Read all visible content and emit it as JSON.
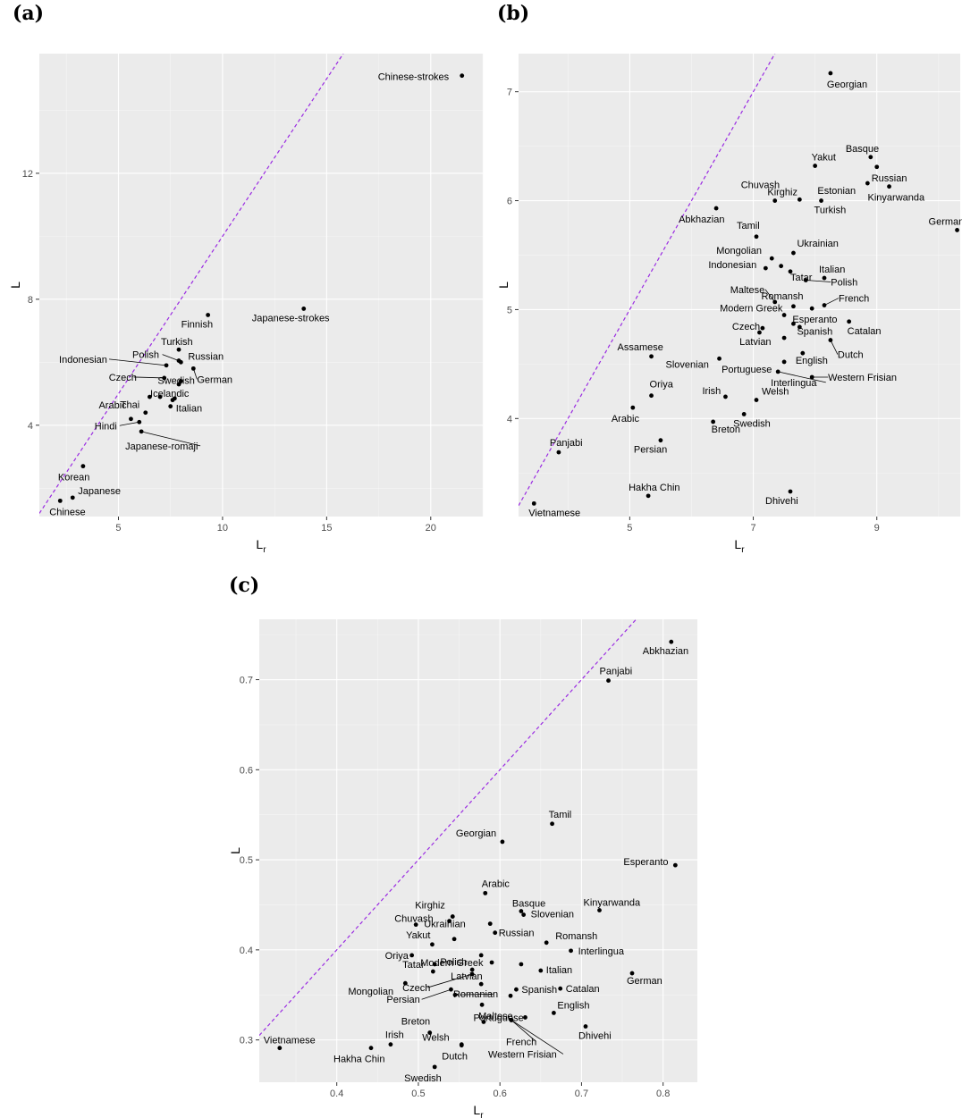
{
  "chart_data": [
    {
      "panel": "(a)",
      "type": "scatter",
      "xlabel": "L",
      "xlabel_sub": "r",
      "ylabel": "L",
      "xlim": [
        1.2,
        22.5
      ],
      "ylim": [
        1.1,
        15.8
      ],
      "xticks": [
        5,
        10,
        15,
        20
      ],
      "yticks": [
        4,
        8,
        12
      ],
      "reference_line": {
        "style": "dashed",
        "color": "#9a2be2",
        "slope": 1,
        "intercept": 0
      },
      "points": [
        {
          "label": "Chinese-strokes",
          "x": 21.5,
          "y": 15.1
        },
        {
          "label": "Japanese-strokes",
          "x": 13.9,
          "y": 7.7
        },
        {
          "label": "Finnish",
          "x": 9.3,
          "y": 7.5
        },
        {
          "label": "Turkish",
          "x": 7.9,
          "y": 6.4
        },
        {
          "label": "Russian",
          "x": 8.0,
          "y": 6.0
        },
        {
          "label": "Polish",
          "x": 7.9,
          "y": 6.05
        },
        {
          "label": "Indonesian",
          "x": 7.3,
          "y": 5.9
        },
        {
          "label": "Swedish",
          "x": 8.0,
          "y": 5.4
        },
        {
          "label": "German",
          "x": 8.6,
          "y": 5.8
        },
        {
          "label": "Czech",
          "x": 7.2,
          "y": 5.5
        },
        {
          "label": "Icelandic",
          "x": 7.9,
          "y": 5.3
        },
        {
          "label": "",
          "x": 6.5,
          "y": 4.9
        },
        {
          "label": "",
          "x": 7.0,
          "y": 4.9
        },
        {
          "label": "",
          "x": 7.6,
          "y": 4.8
        },
        {
          "label": "",
          "x": 7.7,
          "y": 4.85
        },
        {
          "label": "Thai",
          "x": 6.3,
          "y": 4.4
        },
        {
          "label": "Italian",
          "x": 7.5,
          "y": 4.6
        },
        {
          "label": "Arabic",
          "x": 5.6,
          "y": 4.2
        },
        {
          "label": "Hindi",
          "x": 6.0,
          "y": 4.1
        },
        {
          "label": "Japanese-romaji",
          "x": 6.1,
          "y": 3.8
        },
        {
          "label": "Korean",
          "x": 3.3,
          "y": 2.7
        },
        {
          "label": "Japanese",
          "x": 2.8,
          "y": 1.7
        },
        {
          "label": "Chinese",
          "x": 2.2,
          "y": 1.6
        }
      ]
    },
    {
      "panel": "(b)",
      "type": "scatter",
      "xlabel": "L",
      "xlabel_sub": "r",
      "ylabel": "L",
      "xlim": [
        3.2,
        10.35
      ],
      "ylim": [
        3.1,
        7.35
      ],
      "xticks": [
        5,
        7,
        9
      ],
      "yticks": [
        4,
        5,
        6,
        7
      ],
      "reference_line": {
        "style": "dashed",
        "color": "#9a2be2",
        "slope": 1,
        "intercept": 0
      },
      "points": [
        {
          "label": "Georgian",
          "x": 8.25,
          "y": 7.17
        },
        {
          "label": "Basque",
          "x": 8.9,
          "y": 6.4
        },
        {
          "label": "Yakut",
          "x": 8.0,
          "y": 6.32
        },
        {
          "label": "Russian",
          "x": 9.0,
          "y": 6.31
        },
        {
          "label": "Estonian",
          "x": 8.85,
          "y": 6.16
        },
        {
          "label": "Kinyarwanda",
          "x": 9.2,
          "y": 6.13
        },
        {
          "label": "Kirghiz",
          "x": 7.75,
          "y": 6.01
        },
        {
          "label": "Chuvash",
          "x": 7.35,
          "y": 6.0
        },
        {
          "label": "Turkish",
          "x": 8.1,
          "y": 6.0
        },
        {
          "label": "Abkhazian",
          "x": 6.4,
          "y": 5.93
        },
        {
          "label": "German",
          "x": 10.3,
          "y": 5.73
        },
        {
          "label": "Tamil",
          "x": 7.05,
          "y": 5.67
        },
        {
          "label": "Ukrainian",
          "x": 7.65,
          "y": 5.52
        },
        {
          "label": "Mongolian",
          "x": 7.3,
          "y": 5.47
        },
        {
          "label": "",
          "x": 7.45,
          "y": 5.4
        },
        {
          "label": "Indonesian",
          "x": 7.2,
          "y": 5.38
        },
        {
          "label": "Tatar",
          "x": 7.6,
          "y": 5.35
        },
        {
          "label": "Italian",
          "x": 8.15,
          "y": 5.29
        },
        {
          "label": "Polish",
          "x": 7.85,
          "y": 5.27
        },
        {
          "label": "Maltese",
          "x": 7.35,
          "y": 5.07
        },
        {
          "label": "Romansh",
          "x": 7.65,
          "y": 5.03
        },
        {
          "label": "French",
          "x": 8.15,
          "y": 5.04
        },
        {
          "label": "",
          "x": 7.95,
          "y": 5.01
        },
        {
          "label": "Modern Greek",
          "x": 7.5,
          "y": 4.95
        },
        {
          "label": "Spanish",
          "x": 7.65,
          "y": 4.87
        },
        {
          "label": "Catalan",
          "x": 8.55,
          "y": 4.89
        },
        {
          "label": "Czech",
          "x": 7.15,
          "y": 4.83
        },
        {
          "label": "",
          "x": 7.1,
          "y": 4.79
        },
        {
          "label": "Esperanto",
          "x": 7.75,
          "y": 4.84
        },
        {
          "label": "Dutch",
          "x": 8.25,
          "y": 4.72
        },
        {
          "label": "Latvian",
          "x": 7.5,
          "y": 4.74
        },
        {
          "label": "English",
          "x": 7.8,
          "y": 4.6
        },
        {
          "label": "Assamese",
          "x": 5.35,
          "y": 4.57
        },
        {
          "label": "Slovenian",
          "x": 6.45,
          "y": 4.55
        },
        {
          "label": "Portuguese",
          "x": 7.5,
          "y": 4.52
        },
        {
          "label": "Interlingua",
          "x": 7.4,
          "y": 4.43
        },
        {
          "label": "Western Frisian",
          "x": 7.95,
          "y": 4.38
        },
        {
          "label": "Oriya",
          "x": 5.35,
          "y": 4.21
        },
        {
          "label": "Irish",
          "x": 6.55,
          "y": 4.2
        },
        {
          "label": "Welsh",
          "x": 7.05,
          "y": 4.17
        },
        {
          "label": "Arabic",
          "x": 5.05,
          "y": 4.1
        },
        {
          "label": "Swedish",
          "x": 6.85,
          "y": 4.04
        },
        {
          "label": "Breton",
          "x": 6.35,
          "y": 3.97
        },
        {
          "label": "Persian",
          "x": 5.5,
          "y": 3.8
        },
        {
          "label": "Panjabi",
          "x": 3.85,
          "y": 3.69
        },
        {
          "label": "Hakha Chin",
          "x": 5.3,
          "y": 3.29
        },
        {
          "label": "Dhivehi",
          "x": 7.6,
          "y": 3.33
        },
        {
          "label": "Vietnamese",
          "x": 3.45,
          "y": 3.22
        }
      ]
    },
    {
      "panel": "(c)",
      "type": "scatter",
      "xlabel": "L",
      "xlabel_sub": "r",
      "ylabel": "L",
      "xlim": [
        0.305,
        0.842
      ],
      "ylim": [
        0.253,
        0.767
      ],
      "xticks": [
        0.4,
        0.5,
        0.6,
        0.7,
        0.8
      ],
      "yticks": [
        0.3,
        0.4,
        0.5,
        0.6,
        0.7
      ],
      "xtick_labels": [
        "0.4",
        "0.5",
        "0.6",
        "0.7",
        "0.8"
      ],
      "ytick_labels": [
        "0.3",
        "0.4",
        "0.5",
        "0.6",
        "0.7"
      ],
      "reference_line": {
        "style": "dashed",
        "color": "#9a2be2",
        "slope": 1,
        "intercept": 0
      },
      "points": [
        {
          "label": "Abkhazian",
          "x": 0.81,
          "y": 0.742
        },
        {
          "label": "Panjabi",
          "x": 0.733,
          "y": 0.699
        },
        {
          "label": "Tamil",
          "x": 0.664,
          "y": 0.54
        },
        {
          "label": "Georgian",
          "x": 0.603,
          "y": 0.52
        },
        {
          "label": "Esperanto",
          "x": 0.815,
          "y": 0.494
        },
        {
          "label": "Arabic",
          "x": 0.582,
          "y": 0.463
        },
        {
          "label": "Kirghiz",
          "x": 0.542,
          "y": 0.437
        },
        {
          "label": "Basque",
          "x": 0.626,
          "y": 0.443
        },
        {
          "label": "Slovenian",
          "x": 0.629,
          "y": 0.439
        },
        {
          "label": "Kinyarwanda",
          "x": 0.722,
          "y": 0.444
        },
        {
          "label": "Chuvash",
          "x": 0.497,
          "y": 0.428
        },
        {
          "label": "",
          "x": 0.538,
          "y": 0.432
        },
        {
          "label": "Ukrainian",
          "x": 0.588,
          "y": 0.429
        },
        {
          "label": "Yakut",
          "x": 0.544,
          "y": 0.412
        },
        {
          "label": "Russian",
          "x": 0.594,
          "y": 0.419
        },
        {
          "label": "Romansh",
          "x": 0.657,
          "y": 0.408
        },
        {
          "label": "Interlingua",
          "x": 0.687,
          "y": 0.399
        },
        {
          "label": "Oriya",
          "x": 0.492,
          "y": 0.394
        },
        {
          "label": "",
          "x": 0.517,
          "y": 0.406
        },
        {
          "label": "Modern Greek",
          "x": 0.577,
          "y": 0.394
        },
        {
          "label": "Tatar",
          "x": 0.52,
          "y": 0.384
        },
        {
          "label": "Polish",
          "x": 0.518,
          "y": 0.376
        },
        {
          "label": "",
          "x": 0.59,
          "y": 0.386
        },
        {
          "label": "",
          "x": 0.626,
          "y": 0.384
        },
        {
          "label": "Italian",
          "x": 0.65,
          "y": 0.377
        },
        {
          "label": "Czech",
          "x": 0.566,
          "y": 0.373
        },
        {
          "label": "Latvian",
          "x": 0.566,
          "y": 0.378
        },
        {
          "label": "German",
          "x": 0.762,
          "y": 0.374
        },
        {
          "label": "Mongolian",
          "x": 0.484,
          "y": 0.363
        },
        {
          "label": "",
          "x": 0.577,
          "y": 0.362
        },
        {
          "label": "Spanish",
          "x": 0.62,
          "y": 0.356
        },
        {
          "label": "Catalan",
          "x": 0.674,
          "y": 0.357
        },
        {
          "label": "Persian",
          "x": 0.54,
          "y": 0.356
        },
        {
          "label": "Romanian",
          "x": 0.545,
          "y": 0.35
        },
        {
          "label": "",
          "x": 0.613,
          "y": 0.349
        },
        {
          "label": "Maltese",
          "x": 0.578,
          "y": 0.339
        },
        {
          "label": "Portuguese",
          "x": 0.631,
          "y": 0.325
        },
        {
          "label": "English",
          "x": 0.666,
          "y": 0.33
        },
        {
          "label": "Breton",
          "x": 0.514,
          "y": 0.308
        },
        {
          "label": "",
          "x": 0.58,
          "y": 0.32
        },
        {
          "label": "French",
          "x": 0.614,
          "y": 0.322
        },
        {
          "label": "Western Frisian",
          "x": 0.614,
          "y": 0.322
        },
        {
          "label": "Dhivehi",
          "x": 0.705,
          "y": 0.315
        },
        {
          "label": "Irish",
          "x": 0.466,
          "y": 0.295
        },
        {
          "label": "Welsh",
          "x": 0.553,
          "y": 0.295
        },
        {
          "label": "Vietnamese",
          "x": 0.33,
          "y": 0.291
        },
        {
          "label": "Hakha Chin",
          "x": 0.442,
          "y": 0.291
        },
        {
          "label": "Dutch",
          "x": 0.553,
          "y": 0.294
        },
        {
          "label": "Swedish",
          "x": 0.52,
          "y": 0.27
        }
      ]
    }
  ]
}
